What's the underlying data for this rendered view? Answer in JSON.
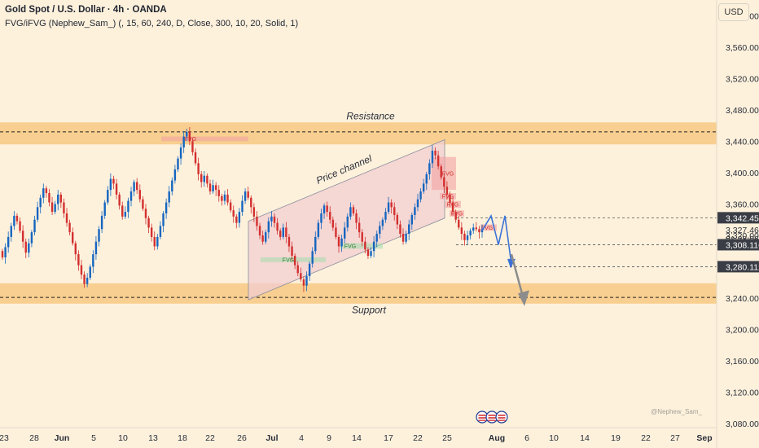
{
  "header": {
    "title": "Gold Spot / U.S. Dollar · 4h · OANDA",
    "indicator": "FVG/iFVG (Nephew_Sam_) (, 15, 60, 240, D, Close, 300, 10, 20, Solid, 1)"
  },
  "axis": {
    "currency": "USD",
    "price_ticks": [
      "3,600.000",
      "3,560.000",
      "3,520.000",
      "3,480.000",
      "3,440.000",
      "3,400.000",
      "3,360.000",
      "3,320.000",
      "3,280.000",
      "3,240.000",
      "3,200.000",
      "3,160.000",
      "3,120.000",
      "3,080.000"
    ],
    "time_ticks": [
      "23",
      "28",
      "Jun",
      "5",
      "10",
      "13",
      "18",
      "22",
      "26",
      "Jul",
      "4",
      "9",
      "14",
      "17",
      "22",
      "25",
      "Aug",
      "6",
      "10",
      "14",
      "19",
      "22",
      "27",
      "Sep"
    ]
  },
  "price_labels": [
    {
      "text": "3,342.459",
      "value": 3342.459,
      "style": "dark"
    },
    {
      "text": "3,327.465",
      "value": 3327.465,
      "style": "plain"
    },
    {
      "text": "01:28:06",
      "value": 3316,
      "style": "plain"
    },
    {
      "text": "3,308.116",
      "value": 3308.116,
      "style": "dark"
    },
    {
      "text": "3,280.112",
      "value": 3280.112,
      "style": "dark"
    }
  ],
  "annotations": {
    "resistance": "Resistance",
    "support": "Support",
    "channel": "Price channel",
    "fvg": "FVG"
  },
  "watermark": "@Nephew_Sam_",
  "colors": {
    "bull": "#1565c0",
    "bear": "#d32f2f",
    "zone": "#f7c983",
    "channel": "#f2cdd0",
    "projection": "#3b73d6"
  },
  "chart_data": {
    "type": "candlestick",
    "ylim": [
      3075,
      3620
    ],
    "zones": [
      {
        "name": "Resistance",
        "from": 3436,
        "to": 3464
      },
      {
        "name": "Support",
        "from": 3233,
        "to": 3259
      }
    ],
    "levels": [
      3452,
      3241,
      3342.459,
      3308.116,
      3280.112
    ],
    "ohlc_closes": [
      3292,
      3305,
      3318,
      3332,
      3345,
      3338,
      3326,
      3312,
      3298,
      3310,
      3324,
      3340,
      3356,
      3368,
      3380,
      3374,
      3362,
      3350,
      3360,
      3372,
      3362,
      3348,
      3336,
      3324,
      3310,
      3296,
      3282,
      3270,
      3258,
      3266,
      3280,
      3296,
      3312,
      3328,
      3345,
      3362,
      3378,
      3392,
      3386,
      3372,
      3358,
      3344,
      3350,
      3364,
      3376,
      3388,
      3378,
      3366,
      3354,
      3342,
      3330,
      3318,
      3306,
      3318,
      3332,
      3348,
      3362,
      3376,
      3390,
      3404,
      3418,
      3432,
      3446,
      3452,
      3440,
      3426,
      3412,
      3398,
      3388,
      3396,
      3386,
      3376,
      3384,
      3378,
      3370,
      3364,
      3372,
      3362,
      3352,
      3344,
      3336,
      3350,
      3364,
      3376,
      3368,
      3356,
      3344,
      3332,
      3320,
      3312,
      3324,
      3338,
      3344,
      3336,
      3326,
      3318,
      3330,
      3318,
      3306,
      3294,
      3282,
      3272,
      3264,
      3256,
      3268,
      3284,
      3300,
      3318,
      3336,
      3348,
      3358,
      3350,
      3340,
      3330,
      3318,
      3306,
      3316,
      3330,
      3344,
      3356,
      3348,
      3336,
      3324,
      3312,
      3302,
      3294,
      3300,
      3312,
      3322,
      3332,
      3340,
      3350,
      3362,
      3356,
      3346,
      3334,
      3322,
      3312,
      3322,
      3334,
      3346,
      3356,
      3366,
      3376,
      3386,
      3398,
      3412,
      3428,
      3422,
      3408,
      3394,
      3382,
      3372,
      3362,
      3350,
      3340,
      3330,
      3322,
      3314,
      3320,
      3326,
      3330,
      3328,
      3324,
      3328
    ]
  }
}
